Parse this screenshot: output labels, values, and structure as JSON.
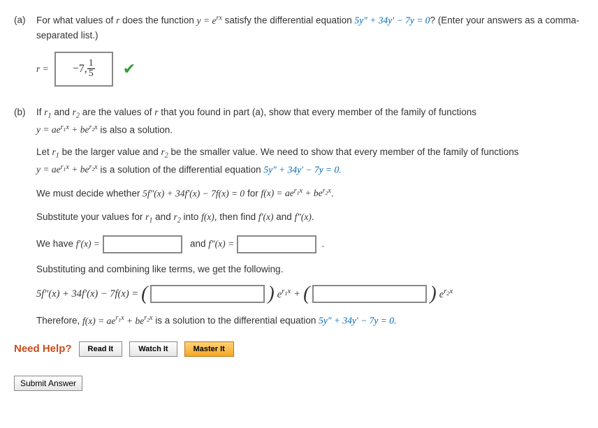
{
  "part_a": {
    "label": "(a)",
    "question_prefix": "For what values of ",
    "var_r": "r",
    "question_mid1": " does the function ",
    "fn": "y = e",
    "fn_exp": "rx",
    "question_mid2": " satisfy the differential equation ",
    "de": "5y″ + 34y′ − 7y = 0",
    "question_suffix": "? (Enter your answers as a comma-separated list.)",
    "r_eq": "r =",
    "answer_neg": "−7, ",
    "frac_num": "1",
    "frac_den": "5"
  },
  "part_b": {
    "label": "(b)",
    "line1_a": "If ",
    "r1": "r",
    "sub1": "1",
    "line1_b": " and ",
    "r2": "r",
    "sub2": "2",
    "line1_c": " are the values of ",
    "line1_d": " that you found in part (a), show that every member of the family of functions",
    "line2_fn": "y = ae",
    "exp_r1x": "r",
    "exp_r1x_sub": "1",
    "exp_x": "x",
    "plus_be": " + be",
    "exp_r2x_sub": "2",
    "line2_end": " is also a solution.",
    "p2_a": "Let ",
    "p2_b": " be the larger value and ",
    "p2_c": " be the smaller value. We need to show that every member of the family of functions",
    "p3_end": " is a solution of the differential equation ",
    "p3_de": "5y″ + 34y′ − 7y = 0.",
    "p4_a": "We must decide whether ",
    "p4_eq": "5f″(x) + 34f′(x) − 7f(x) = 0",
    "p4_b": " for ",
    "p4_fx": "f(x) = ae",
    "p4_end": ".",
    "p5_a": "Substitute your values for ",
    "p5_b": " into ",
    "p5_fx": "f(x)",
    "p5_c": ", then find ",
    "p5_fpx": "f′(x)",
    "p5_d": " and ",
    "p5_fppx": "f″(x)",
    "p6_a": "We have ",
    "p6_fp": "f′(x) =",
    "p6_and": "and ",
    "p6_fpp": "f″(x) =",
    "p7": "Substituting and combining like terms, we get the following.",
    "p8_lhs": "5f″(x) + 34f′(x) − 7f(x) =",
    "p8_e1": "e",
    "p8_plus": " + ",
    "p8_e2": "e",
    "p9_a": "Therefore, ",
    "p9_fx": "f(x) = ae",
    "p9_b": " is a solution to the differential equation ",
    "p9_de": "5y″ + 34y′ − 7y = 0."
  },
  "help": {
    "label": "Need Help?",
    "read": "Read It",
    "watch": "Watch It",
    "master": "Master It"
  },
  "submit": "Submit Answer"
}
